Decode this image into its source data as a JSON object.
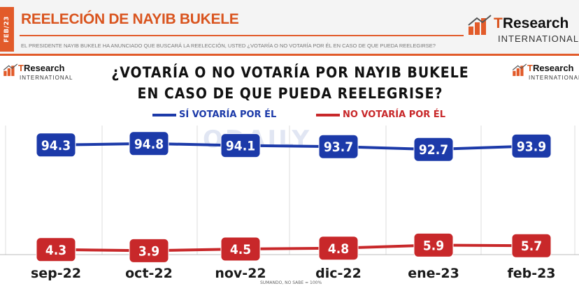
{
  "header": {
    "side_tag": "FEB/23",
    "title": "REELECIÓN DE NAYIB BUKELE",
    "question": "EL PRESIDENTE NAYIB BUKELE HA ANUNCIADO QUE BUSCARÁ LA REELECCIÓN, USTED ¿VOTARÍA O NO VOTARÍA POR ÉL EN CASO DE QUE PUEDA REELEGIRSE?"
  },
  "logo": {
    "brand_t": "T",
    "brand_rest": "Research",
    "sub": "INTERNATIONAL"
  },
  "watermark": "ODAILY",
  "footnote": "SUMANDO, NO SABE = 100%",
  "colors": {
    "accent": "#e25b2a",
    "si": "#1c3aa9",
    "no": "#c8282a"
  },
  "chart_data": {
    "type": "line",
    "title_line1": "¿VOTARÍA O NO VOTARÍA POR NAYIB BUKELE",
    "title_line2": "EN CASO DE QUE PUEDA REELEGRISE?",
    "categories": [
      "sep-22",
      "oct-22",
      "nov-22",
      "dic-22",
      "ene-23",
      "feb-23"
    ],
    "series": [
      {
        "name": "SÍ VOTARÍA POR ÉL",
        "values": [
          94.3,
          94.8,
          94.1,
          93.7,
          92.7,
          93.9
        ]
      },
      {
        "name": "NO VOTARÍA POR ÉL",
        "values": [
          4.3,
          3.9,
          4.5,
          4.8,
          5.9,
          5.7
        ]
      }
    ],
    "grid": "vertical",
    "legend_position": "top"
  }
}
